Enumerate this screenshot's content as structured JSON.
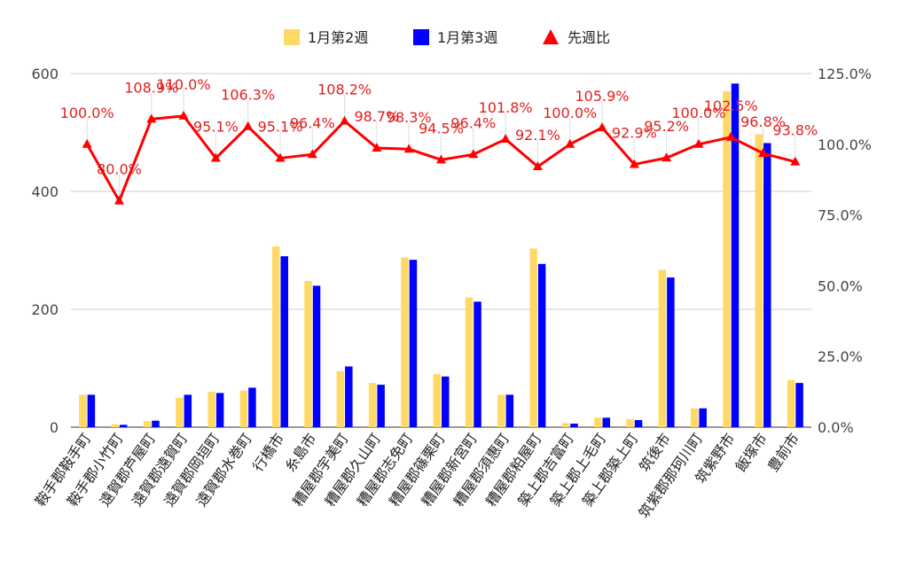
{
  "chart_data": {
    "type": "bar",
    "title": "",
    "categories": [
      "鞍手郡鞍手町",
      "鞍手郡小竹町",
      "遠賀郡芦屋町",
      "遠賀郡遠賀町",
      "遠賀郡岡垣町",
      "遠賀郡水巻町",
      "行橋市",
      "糸島市",
      "糟屋郡宇美町",
      "糟屋郡久山町",
      "糟屋郡志免町",
      "糟屋郡篠栗町",
      "糟屋郡新宮町",
      "糟屋郡須惠町",
      "糟屋郡粕屋町",
      "築上郡吉富町",
      "築上郡上毛町",
      "築上郡築上町",
      "筑後市",
      "筑紫郡那珂川町",
      "筑紫野市",
      "飯塚市",
      "豊前市"
    ],
    "series": [
      {
        "name": "1月第2週",
        "type": "bar",
        "axis": "left",
        "color": "#ffd966",
        "values": [
          55,
          5,
          10,
          50,
          60,
          62,
          307,
          248,
          95,
          75,
          288,
          90,
          220,
          55,
          303,
          7,
          16,
          14,
          267,
          32,
          570,
          497,
          80
        ]
      },
      {
        "name": "1月第3週",
        "type": "bar",
        "axis": "left",
        "color": "#0000ff",
        "values": [
          55,
          4,
          11,
          55,
          58,
          67,
          290,
          240,
          103,
          72,
          284,
          86,
          213,
          55,
          277,
          6,
          16,
          12,
          254,
          32,
          583,
          482,
          75
        ]
      },
      {
        "name": "先週比",
        "type": "line",
        "axis": "right",
        "color": "#ff0000",
        "values": [
          100.0,
          80.0,
          108.9,
          110.0,
          95.1,
          106.3,
          95.1,
          96.4,
          108.2,
          98.7,
          98.3,
          94.5,
          96.4,
          101.8,
          92.1,
          100.0,
          105.9,
          92.9,
          95.2,
          100.0,
          102.5,
          96.8,
          93.8
        ],
        "labels": [
          "100.0%",
          "80.0%",
          "108.9%",
          "110.0%",
          "95.1%",
          "106.3%",
          "95.1%",
          "96.4%",
          "108.2%",
          "98.7%",
          "98.3%",
          "94.5%",
          "96.4%",
          "101.8%",
          "92.1%",
          "100.0%",
          "105.9%",
          "92.9%",
          "95.2%",
          "100.0%",
          "102.5%",
          "96.8%",
          "93.8%"
        ]
      }
    ],
    "y_left": {
      "min": 0,
      "max": 600,
      "ticks": [
        "0",
        "200",
        "400",
        "600"
      ]
    },
    "y_right": {
      "min": 0,
      "max": 125,
      "ticks": [
        "0.0%",
        "25.0%",
        "50.0%",
        "75.0%",
        "100.0%",
        "125.0%"
      ]
    },
    "legend": {
      "position": "top",
      "items": [
        "1月第2週",
        "1月第3週",
        "先週比"
      ]
    },
    "grid": true
  }
}
